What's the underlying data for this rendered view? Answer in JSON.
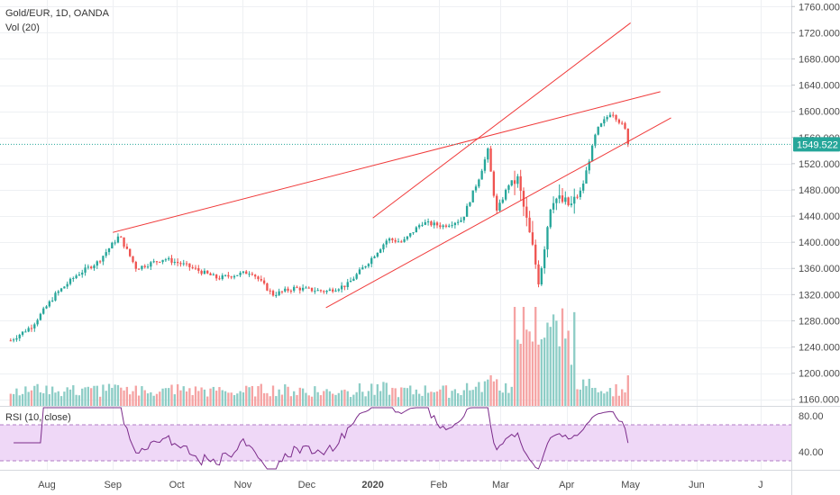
{
  "header": {
    "symbol_line": "Gold/EUR, 1D, OANDA",
    "volume_label": "Vol (20)",
    "rsi_label": "RSI (10, close)"
  },
  "colors": {
    "up": "#26a69a",
    "down": "#ef5350",
    "vol_up": "#8dcdc6",
    "vol_down": "#f5a3a3",
    "trendline": "#f03a3a",
    "last_price_line": "#26a69a",
    "rsi_line": "#7b2b8a",
    "rsi_band": "#efd8f7",
    "grid": "#eef0f3"
  },
  "chart_data": [
    {
      "type": "candlestick",
      "title": "Gold/EUR, 1D, OANDA",
      "x_ticks": [
        "Aug",
        "Sep",
        "Oct",
        "Nov",
        "Dec",
        "2020",
        "Feb",
        "Mar",
        "Apr",
        "May",
        "Jun",
        "J"
      ],
      "y_ticks": [
        "1760.000",
        "1720.000",
        "1680.000",
        "1640.000",
        "1600.000",
        "1560.000",
        "1520.000",
        "1480.000",
        "1440.000",
        "1400.000",
        "1360.000",
        "1320.000",
        "1280.000",
        "1240.000",
        "1200.000",
        "1160.000"
      ],
      "ylim": [
        1150,
        1770
      ],
      "last_price": "1549.522",
      "anchor_closes": [
        {
          "date": "2019-07-15",
          "close": 1250
        },
        {
          "date": "2019-07-25",
          "close": 1272
        },
        {
          "date": "2019-08-05",
          "close": 1320
        },
        {
          "date": "2019-08-15",
          "close": 1350
        },
        {
          "date": "2019-08-25",
          "close": 1370
        },
        {
          "date": "2019-09-04",
          "close": 1410
        },
        {
          "date": "2019-09-12",
          "close": 1360
        },
        {
          "date": "2019-09-25",
          "close": 1375
        },
        {
          "date": "2019-10-05",
          "close": 1365
        },
        {
          "date": "2019-10-20",
          "close": 1345
        },
        {
          "date": "2019-11-05",
          "close": 1355
        },
        {
          "date": "2019-11-15",
          "close": 1320
        },
        {
          "date": "2019-11-25",
          "close": 1330
        },
        {
          "date": "2019-12-10",
          "close": 1325
        },
        {
          "date": "2019-12-20",
          "close": 1335
        },
        {
          "date": "2019-12-30",
          "close": 1370
        },
        {
          "date": "2020-01-08",
          "close": 1405
        },
        {
          "date": "2020-01-15",
          "close": 1400
        },
        {
          "date": "2020-01-24",
          "close": 1430
        },
        {
          "date": "2020-02-03",
          "close": 1425
        },
        {
          "date": "2020-02-12",
          "close": 1435
        },
        {
          "date": "2020-02-20",
          "close": 1500
        },
        {
          "date": "2020-02-24",
          "close": 1540
        },
        {
          "date": "2020-02-28",
          "close": 1445
        },
        {
          "date": "2020-03-05",
          "close": 1490
        },
        {
          "date": "2020-03-09",
          "close": 1495
        },
        {
          "date": "2020-03-16",
          "close": 1390
        },
        {
          "date": "2020-03-19",
          "close": 1340
        },
        {
          "date": "2020-03-25",
          "close": 1470
        },
        {
          "date": "2020-04-03",
          "close": 1455
        },
        {
          "date": "2020-04-08",
          "close": 1480
        },
        {
          "date": "2020-04-15",
          "close": 1570
        },
        {
          "date": "2020-04-22",
          "close": 1600
        },
        {
          "date": "2020-04-28",
          "close": 1575
        },
        {
          "date": "2020-05-01",
          "close": 1549.522
        }
      ],
      "trendlines": [
        {
          "start": {
            "date": "2019-09-01",
            "price": 1415
          },
          "end": {
            "date": "2020-05-15",
            "price": 1630
          }
        },
        {
          "start": {
            "date": "2020-01-01",
            "price": 1437
          },
          "end": {
            "date": "2020-05-01",
            "price": 1735
          }
        },
        {
          "start": {
            "date": "2019-12-10",
            "price": 1300
          },
          "end": {
            "date": "2020-05-20",
            "price": 1590
          }
        }
      ]
    },
    {
      "type": "bar",
      "title": "Vol (20)",
      "note": "volume histogram; heights follow volatility, spike in March 2020"
    },
    {
      "type": "line",
      "title": "RSI (10, close)",
      "y_ticks": [
        "80.00",
        "40.00"
      ],
      "ylim": [
        20,
        90
      ],
      "band": [
        30,
        70
      ]
    }
  ]
}
